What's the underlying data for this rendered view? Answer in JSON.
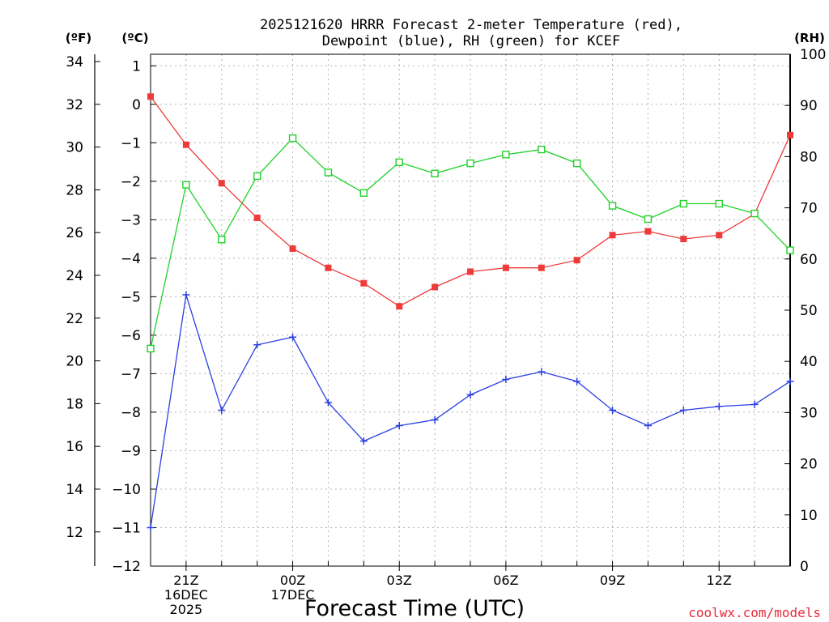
{
  "chart_data": {
    "type": "line",
    "title_line1": "2025121620 HRRR Forecast 2-meter Temperature (red),",
    "title_line2": "Dewpoint (blue), RH (green) for KCEF",
    "unit_f": "(ºF)",
    "unit_c": "(ºC)",
    "unit_rh": "(RH)",
    "xlabel": "Forecast Time (UTC)",
    "credit": "coolwx.com/models",
    "x_hours": [
      20,
      21,
      22,
      23,
      24,
      25,
      26,
      27,
      28,
      29,
      30,
      31,
      32,
      33,
      34,
      35,
      36,
      37,
      38
    ],
    "xlim": [
      20,
      38
    ],
    "x_ticks": [
      {
        "hour": 21,
        "lines": [
          "21Z",
          "16DEC",
          "2025"
        ]
      },
      {
        "hour": 24,
        "lines": [
          "00Z",
          "17DEC"
        ]
      },
      {
        "hour": 27,
        "lines": [
          "03Z"
        ]
      },
      {
        "hour": 30,
        "lines": [
          "06Z"
        ]
      },
      {
        "hour": 33,
        "lines": [
          "09Z"
        ]
      },
      {
        "hour": 36,
        "lines": [
          "12Z"
        ]
      }
    ],
    "celsius_axis": {
      "ylim": [
        -12,
        1.3
      ],
      "ticks": [
        "1",
        "0",
        "−1",
        "−2",
        "−3",
        "−4",
        "−5",
        "−6",
        "−7",
        "−8",
        "−9",
        "−10",
        "−11",
        "−12"
      ],
      "tick_values": [
        1,
        0,
        -1,
        -2,
        -3,
        -4,
        -5,
        -6,
        -7,
        -8,
        -9,
        -10,
        -11,
        -12
      ]
    },
    "fahrenheit_axis": {
      "ticks": [
        "34",
        "32",
        "30",
        "28",
        "26",
        "24",
        "22",
        "20",
        "18",
        "16",
        "14",
        "12"
      ],
      "tick_values": [
        34,
        32,
        30,
        28,
        26,
        24,
        22,
        20,
        18,
        16,
        14,
        12
      ]
    },
    "rh_axis": {
      "ylim": [
        0,
        100
      ],
      "ticks": [
        "100",
        "90",
        "80",
        "70",
        "60",
        "50",
        "40",
        "30",
        "20",
        "10",
        "0"
      ],
      "tick_values": [
        100,
        90,
        80,
        70,
        60,
        50,
        40,
        30,
        20,
        10,
        0
      ]
    },
    "series": [
      {
        "name": "2-meter Temperature",
        "color": "#ef3a3a",
        "marker": "filled-square",
        "axis": "celsius",
        "values": [
          0.2,
          -1.05,
          -2.05,
          -2.95,
          -3.75,
          -4.25,
          -4.65,
          -5.25,
          -4.75,
          -4.35,
          -4.25,
          -4.25,
          -4.05,
          -3.4,
          -3.3,
          -3.5,
          -3.4,
          -2.85,
          -0.8
        ]
      },
      {
        "name": "Dewpoint",
        "color": "#2a3fe0",
        "marker": "plus",
        "axis": "celsius",
        "values": [
          -11.0,
          -4.95,
          -7.95,
          -6.25,
          -6.05,
          -7.75,
          -8.75,
          -8.35,
          -8.2,
          -7.55,
          -7.15,
          -6.95,
          -7.2,
          -7.95,
          -8.35,
          -7.95,
          -7.85,
          -7.8,
          -7.2
        ]
      },
      {
        "name": "RH",
        "color": "#22d12a",
        "marker": "open-square",
        "axis": "rh",
        "values": [
          42.5,
          74.5,
          63.8,
          76.2,
          83.6,
          76.9,
          72.9,
          78.9,
          76.7,
          78.7,
          80.4,
          81.4,
          78.7,
          70.4,
          67.8,
          70.8,
          70.8,
          68.9,
          61.7
        ]
      }
    ]
  }
}
